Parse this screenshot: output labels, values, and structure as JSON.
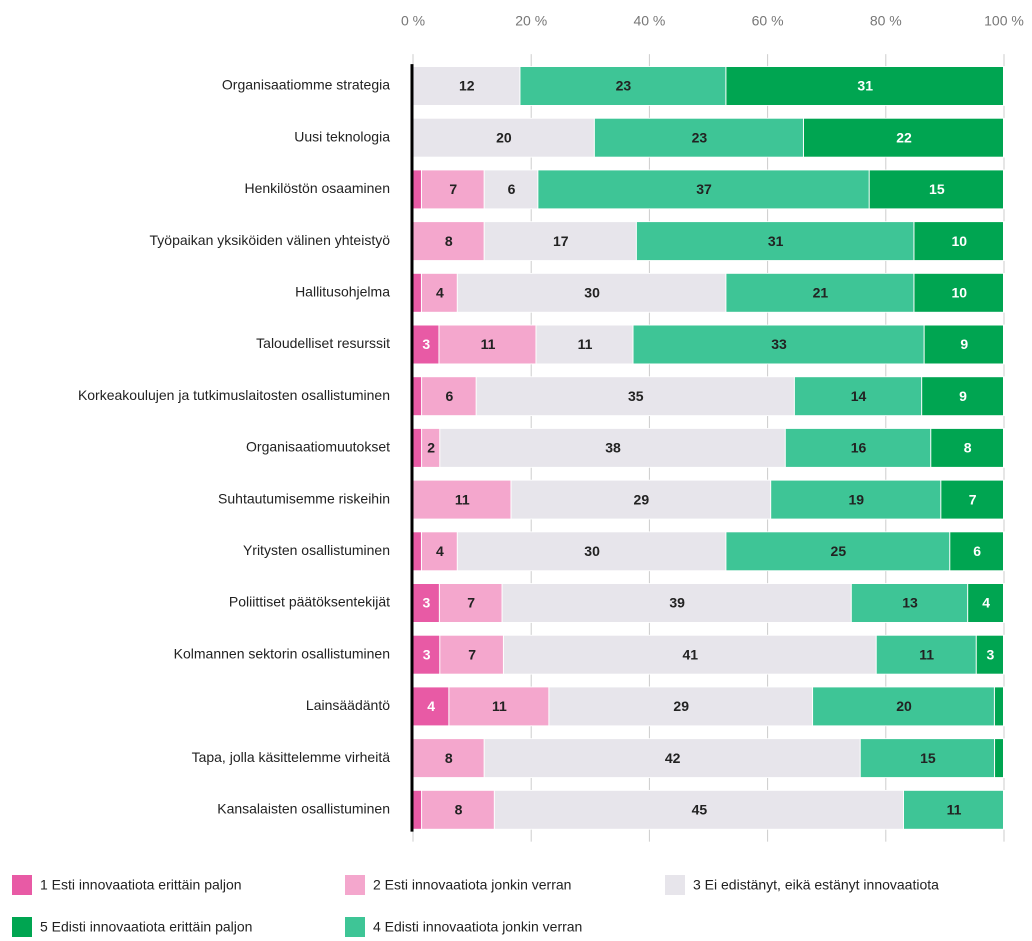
{
  "chart_data": {
    "type": "stacked_bar_horizontal",
    "stacking": "percent",
    "categories": [
      "Organisaatiomme strategia",
      "Uusi teknologia",
      "Henkilöstön osaaminen",
      "Työpaikan yksiköiden välinen yhteistyö",
      "Hallitusohjelma",
      "Taloudelliset resurssit",
      "Korkeakoulujen ja tutkimuslaitosten osallistuminen",
      "Organisaatiomuutokset",
      "Suhtautumisemme riskeihin",
      "Yritysten osallistuminen",
      "Poliittiset päätöksentekijät",
      "Kolmannen sektorin osallistuminen",
      "Lainsäädäntö",
      "Tapa, jolla käsittelemme virheitä",
      "Kansalaisten osallistuminen"
    ],
    "series": [
      {
        "name": "1 Esti innovaatiota erittäin paljon",
        "color": "#e85aa5",
        "values": [
          0,
          0,
          1,
          0,
          1,
          3,
          1,
          1,
          0,
          1,
          3,
          3,
          4,
          0,
          1
        ]
      },
      {
        "name": "2 Esti innovaatiota jonkin verran",
        "color": "#f4a7cd",
        "values": [
          0,
          0,
          7,
          8,
          4,
          11,
          6,
          2,
          11,
          4,
          7,
          7,
          11,
          8,
          8
        ]
      },
      {
        "name": "3 Ei edistänyt, eikä estänyt innovaatiota",
        "color": "#e7e5eb",
        "values": [
          12,
          20,
          6,
          17,
          30,
          11,
          35,
          38,
          29,
          30,
          39,
          41,
          29,
          42,
          45
        ]
      },
      {
        "name": "4 Edisti innovaatiota jonkin verran",
        "color": "#3ec596",
        "values": [
          23,
          23,
          37,
          31,
          21,
          33,
          14,
          16,
          19,
          25,
          13,
          11,
          20,
          15,
          11
        ]
      },
      {
        "name": "5 Edisti innovaatiota erittäin paljon",
        "color": "#00a551",
        "values": [
          31,
          22,
          15,
          10,
          10,
          9,
          9,
          8,
          7,
          6,
          4,
          3,
          1,
          1,
          0
        ]
      }
    ],
    "xlim": [
      0,
      100
    ],
    "xticks": [
      {
        "value": 0,
        "label": "0 %"
      },
      {
        "value": 20,
        "label": "20 %"
      },
      {
        "value": 40,
        "label": "40 %"
      },
      {
        "value": 60,
        "label": "60 %"
      },
      {
        "value": 80,
        "label": "80 %"
      },
      {
        "value": 100,
        "label": "100 %"
      }
    ]
  }
}
